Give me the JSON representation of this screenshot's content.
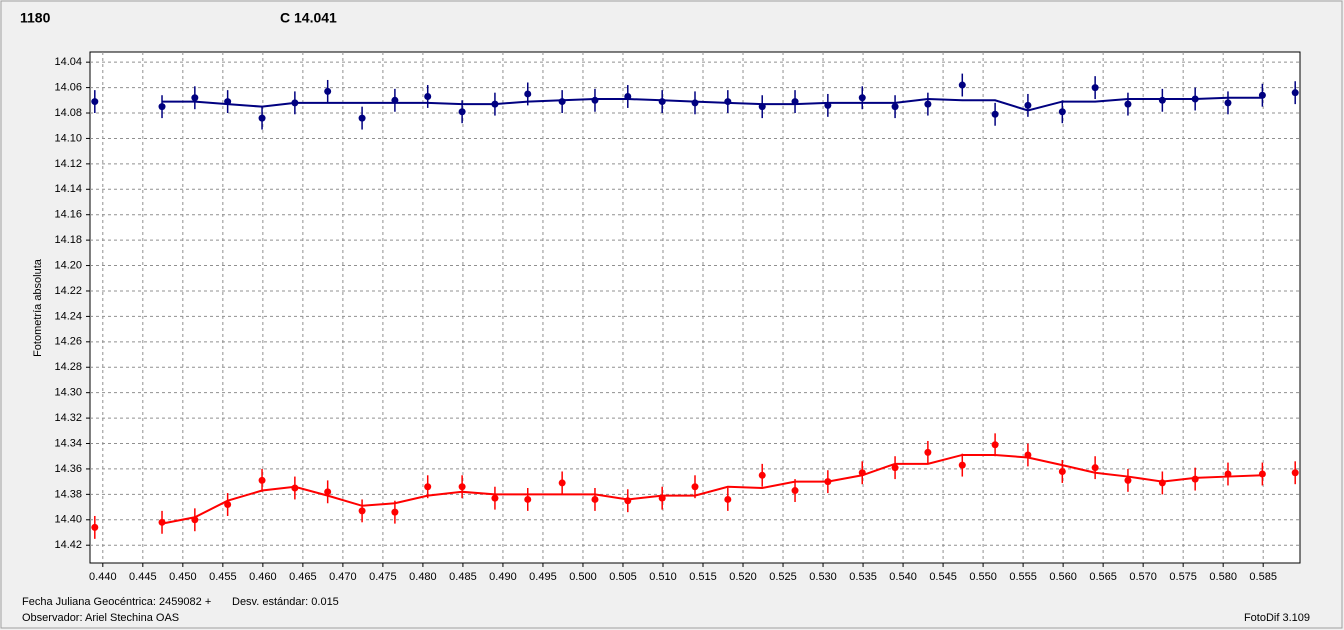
{
  "chart_data": {
    "type": "scatter",
    "y_label": "Fotometría absoluta",
    "footer_date": "Fecha Juliana Geocéntrica: 2459082 +",
    "footer_std": "Desv. estándar: 0.015",
    "footer_observer": "Observador: Ariel Stechina OAS",
    "footer_version": "FotoDif 3.109",
    "x": [
      0.439,
      0.4474,
      0.4515,
      0.4556,
      0.4599,
      0.464,
      0.4681,
      0.4724,
      0.4765,
      0.4806,
      0.4849,
      0.489,
      0.4931,
      0.4974,
      0.5015,
      0.5056,
      0.5099,
      0.514,
      0.5181,
      0.5224,
      0.5265,
      0.5306,
      0.5349,
      0.539,
      0.5431,
      0.5474,
      0.5515,
      0.5556,
      0.5599,
      0.564,
      0.5681,
      0.5724,
      0.5765,
      0.5806,
      0.5849,
      0.589
    ],
    "series": [
      {
        "name": "1180",
        "color": "#ff0000",
        "error": 0.009,
        "values": [
          14.406,
          14.402,
          14.4,
          14.388,
          14.369,
          14.375,
          14.378,
          14.393,
          14.394,
          14.374,
          14.374,
          14.383,
          14.384,
          14.371,
          14.384,
          14.385,
          14.383,
          14.374,
          14.384,
          14.365,
          14.377,
          14.37,
          14.363,
          14.359,
          14.347,
          14.357,
          14.341,
          14.349,
          14.362,
          14.359,
          14.369,
          14.371,
          14.368,
          14.364,
          14.364,
          14.363
        ],
        "fit": [
          null,
          14.403,
          14.398,
          14.385,
          14.377,
          14.374,
          14.381,
          14.389,
          14.387,
          14.381,
          14.378,
          14.38,
          14.38,
          14.38,
          14.38,
          14.384,
          14.381,
          14.381,
          14.374,
          14.375,
          14.37,
          14.37,
          14.365,
          14.356,
          14.356,
          14.349,
          14.349,
          14.351,
          14.357,
          14.363,
          14.366,
          14.37,
          14.367,
          14.366,
          14.365,
          null
        ]
      },
      {
        "name": "C 14.041",
        "color": "#000080",
        "error": 0.009,
        "values": [
          14.071,
          14.075,
          14.068,
          14.071,
          14.084,
          14.072,
          14.063,
          14.084,
          14.07,
          14.067,
          14.079,
          14.073,
          14.065,
          14.071,
          14.07,
          14.067,
          14.071,
          14.072,
          14.071,
          14.075,
          14.071,
          14.074,
          14.068,
          14.075,
          14.073,
          14.058,
          14.081,
          14.074,
          14.079,
          14.06,
          14.073,
          14.07,
          14.069,
          14.072,
          14.066,
          14.064
        ],
        "fit": [
          null,
          14.071,
          14.071,
          14.073,
          14.075,
          14.072,
          14.072,
          14.072,
          14.072,
          14.072,
          14.073,
          14.073,
          14.071,
          14.07,
          14.069,
          14.069,
          14.07,
          14.071,
          14.072,
          14.073,
          14.073,
          14.072,
          14.072,
          14.072,
          14.069,
          14.07,
          14.07,
          14.078,
          14.071,
          14.071,
          14.069,
          14.069,
          14.069,
          14.068,
          14.068,
          null
        ]
      }
    ],
    "xlim": [
      0.4384,
      0.5896
    ],
    "xticks": [
      {
        "value": 0.44,
        "label": "0.440"
      },
      {
        "value": 0.445,
        "label": "0.445"
      },
      {
        "value": 0.45,
        "label": "0.450"
      },
      {
        "value": 0.455,
        "label": "0.455"
      },
      {
        "value": 0.46,
        "label": "0.460"
      },
      {
        "value": 0.465,
        "label": "0.465"
      },
      {
        "value": 0.47,
        "label": "0.470"
      },
      {
        "value": 0.475,
        "label": "0.475"
      },
      {
        "value": 0.48,
        "label": "0.480"
      },
      {
        "value": 0.485,
        "label": "0.485"
      },
      {
        "value": 0.49,
        "label": "0.490"
      },
      {
        "value": 0.495,
        "label": "0.495"
      },
      {
        "value": 0.5,
        "label": "0.500"
      },
      {
        "value": 0.505,
        "label": "0.505"
      },
      {
        "value": 0.51,
        "label": "0.510"
      },
      {
        "value": 0.515,
        "label": "0.515"
      },
      {
        "value": 0.52,
        "label": "0.520"
      },
      {
        "value": 0.525,
        "label": "0.525"
      },
      {
        "value": 0.53,
        "label": "0.530"
      },
      {
        "value": 0.535,
        "label": "0.535"
      },
      {
        "value": 0.54,
        "label": "0.540"
      },
      {
        "value": 0.545,
        "label": "0.545"
      },
      {
        "value": 0.55,
        "label": "0.550"
      },
      {
        "value": 0.555,
        "label": "0.555"
      },
      {
        "value": 0.56,
        "label": "0.560"
      },
      {
        "value": 0.565,
        "label": "0.565"
      },
      {
        "value": 0.57,
        "label": "0.570"
      },
      {
        "value": 0.575,
        "label": "0.575"
      },
      {
        "value": 0.58,
        "label": "0.580"
      },
      {
        "value": 0.585,
        "label": "0.585"
      }
    ],
    "ylim": [
      14.434,
      14.032
    ],
    "yticks": [
      14.04,
      14.06,
      14.08,
      {
        "value": 14.1,
        "label": "14.10"
      },
      14.12,
      14.14,
      14.16,
      14.18,
      {
        "value": 14.2,
        "label": "14.20"
      },
      14.22,
      14.24,
      14.26,
      14.28,
      {
        "value": 14.3,
        "label": "14.30"
      },
      14.32,
      14.34,
      14.36,
      14.38,
      {
        "value": 14.4,
        "label": "14.40"
      },
      14.42
    ],
    "grid": true
  }
}
